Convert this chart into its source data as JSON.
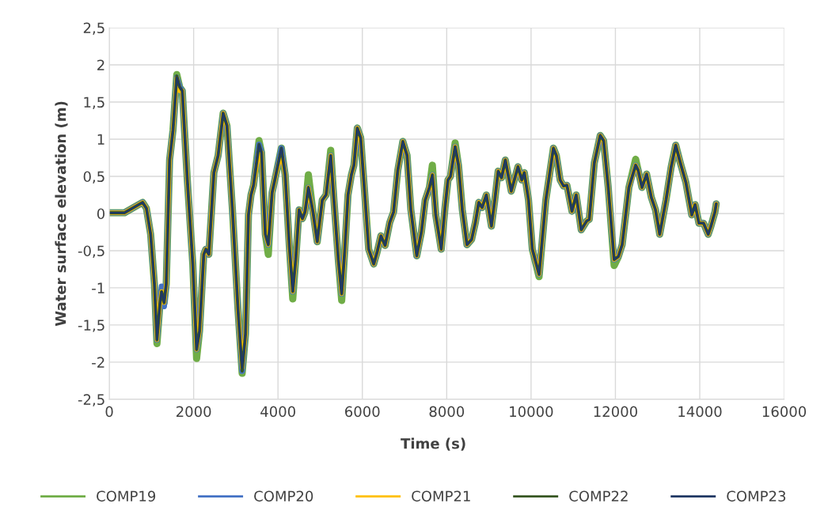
{
  "chart_data": {
    "type": "line",
    "xlabel": "Time (s)",
    "ylabel": "Water surface elevation (m)",
    "xlim": [
      0,
      16000
    ],
    "xticks": [
      0,
      2000,
      4000,
      6000,
      8000,
      10000,
      12000,
      14000,
      16000
    ],
    "ylim": [
      -2.5,
      2.5
    ],
    "yticks": [
      {
        "value": -2.5,
        "label": "-2,5"
      },
      -2,
      {
        "value": -1.5,
        "label": "-1,5"
      },
      -1,
      {
        "value": -0.5,
        "label": "-0,5"
      },
      0,
      {
        "value": 0.5,
        "label": "0,5"
      },
      1,
      {
        "value": 1.5,
        "label": "1,5"
      },
      2,
      {
        "value": 2.5,
        "label": "2,5"
      }
    ],
    "grid": true,
    "legend": "bottom",
    "marker": "none",
    "line_style": "solid",
    "x": [
      0,
      360,
      790,
      880,
      980,
      1070,
      1130,
      1200,
      1240,
      1300,
      1350,
      1430,
      1510,
      1600,
      1670,
      1730,
      1850,
      1980,
      2070,
      2140,
      2240,
      2290,
      2360,
      2480,
      2580,
      2700,
      2790,
      2920,
      3050,
      3150,
      3230,
      3300,
      3360,
      3420,
      3550,
      3610,
      3700,
      3770,
      3860,
      3950,
      4080,
      4170,
      4270,
      4350,
      4420,
      4500,
      4580,
      4640,
      4720,
      4830,
      4930,
      5050,
      5140,
      5250,
      5330,
      5430,
      5510,
      5580,
      5660,
      5740,
      5800,
      5880,
      5960,
      6050,
      6150,
      6210,
      6270,
      6350,
      6440,
      6540,
      6650,
      6740,
      6840,
      6960,
      7060,
      7150,
      7290,
      7400,
      7490,
      7590,
      7660,
      7740,
      7870,
      7960,
      8030,
      8090,
      8200,
      8280,
      8370,
      8480,
      8590,
      8680,
      8760,
      8840,
      8940,
      9060,
      9140,
      9220,
      9300,
      9390,
      9530,
      9690,
      9780,
      9840,
      9940,
      10030,
      10190,
      10350,
      10530,
      10600,
      10690,
      10770,
      10850,
      10970,
      11070,
      11190,
      11320,
      11380,
      11500,
      11640,
      11720,
      11830,
      11970,
      12070,
      12160,
      12320,
      12480,
      12540,
      12630,
      12740,
      12850,
      12950,
      13050,
      13200,
      13320,
      13430,
      13540,
      13670,
      13810,
      13890,
      13980,
      14090,
      14200,
      14260,
      14360,
      14390
    ],
    "series": [
      {
        "name": "COMP19",
        "color": "#70ad47",
        "values": [
          0.01,
          0.01,
          0.15,
          0.07,
          -0.28,
          -0.95,
          -1.75,
          -1.22,
          -1.05,
          -1.2,
          -0.95,
          0.72,
          1.12,
          1.87,
          1.7,
          1.65,
          0.45,
          -0.68,
          -1.95,
          -1.58,
          -0.55,
          -0.48,
          -0.55,
          0.55,
          0.78,
          1.35,
          1.18,
          0.05,
          -1.28,
          -2.15,
          -1.62,
          -0.02,
          0.25,
          0.38,
          0.98,
          0.82,
          -0.28,
          -0.55,
          0.28,
          0.52,
          0.88,
          0.52,
          -0.45,
          -1.15,
          -0.62,
          0.05,
          -0.07,
          0.02,
          0.52,
          0.02,
          -0.38,
          0.18,
          0.25,
          0.85,
          0.15,
          -0.62,
          -1.17,
          -0.52,
          0.25,
          0.52,
          0.65,
          1.15,
          1.02,
          0.32,
          -0.48,
          -0.58,
          -0.68,
          -0.52,
          -0.3,
          -0.43,
          -0.12,
          0.02,
          0.58,
          0.97,
          0.78,
          0.05,
          -0.57,
          -0.25,
          0.18,
          0.35,
          0.65,
          -0.02,
          -0.48,
          0.08,
          0.45,
          0.5,
          0.95,
          0.65,
          0.05,
          -0.42,
          -0.35,
          -0.12,
          0.15,
          0.08,
          0.25,
          -0.17,
          0.18,
          0.57,
          0.48,
          0.72,
          0.3,
          0.63,
          0.45,
          0.55,
          0.18,
          -0.48,
          -0.85,
          0.18,
          0.88,
          0.78,
          0.45,
          0.37,
          0.38,
          0.03,
          0.25,
          -0.22,
          -0.1,
          -0.08,
          0.68,
          1.05,
          0.98,
          0.35,
          -0.7,
          -0.58,
          -0.42,
          0.35,
          0.73,
          0.58,
          0.35,
          0.53,
          0.22,
          0.05,
          -0.28,
          0.18,
          0.62,
          0.92,
          0.68,
          0.42,
          -0.02,
          0.12,
          -0.13,
          -0.13,
          -0.28,
          -0.18,
          0.02,
          0.13
        ]
      },
      {
        "name": "COMP20",
        "color": "#4472c4",
        "values": [
          0.01,
          0.01,
          0.15,
          0.07,
          -0.28,
          -0.95,
          -1.7,
          -1.22,
          -0.98,
          -1.25,
          -0.95,
          0.72,
          1.12,
          1.83,
          1.7,
          1.65,
          0.45,
          -0.68,
          -1.83,
          -1.58,
          -0.55,
          -0.48,
          -0.55,
          0.55,
          0.78,
          1.35,
          1.18,
          0.05,
          -1.28,
          -2.12,
          -1.62,
          -0.02,
          0.25,
          0.38,
          0.93,
          0.82,
          -0.28,
          -0.42,
          0.28,
          0.52,
          0.88,
          0.52,
          -0.45,
          -1.05,
          -0.62,
          0.05,
          -0.07,
          0.02,
          0.35,
          0.02,
          -0.38,
          0.18,
          0.25,
          0.78,
          0.15,
          -0.62,
          -1.08,
          -0.52,
          0.25,
          0.52,
          0.65,
          1.15,
          1.02,
          0.32,
          -0.48,
          -0.58,
          -0.68,
          -0.52,
          -0.3,
          -0.43,
          -0.12,
          0.02,
          0.58,
          0.97,
          0.78,
          0.05,
          -0.57,
          -0.25,
          0.18,
          0.35,
          0.52,
          -0.02,
          -0.48,
          0.08,
          0.45,
          0.5,
          0.9,
          0.65,
          0.05,
          -0.42,
          -0.35,
          -0.12,
          0.15,
          0.08,
          0.25,
          -0.17,
          0.18,
          0.57,
          0.48,
          0.72,
          0.3,
          0.63,
          0.45,
          0.55,
          0.18,
          -0.48,
          -0.82,
          0.18,
          0.88,
          0.78,
          0.45,
          0.37,
          0.38,
          0.03,
          0.25,
          -0.22,
          -0.1,
          -0.08,
          0.68,
          1.05,
          0.98,
          0.35,
          -0.62,
          -0.58,
          -0.42,
          0.35,
          0.65,
          0.58,
          0.35,
          0.53,
          0.22,
          0.05,
          -0.28,
          0.18,
          0.62,
          0.92,
          0.68,
          0.42,
          -0.02,
          0.12,
          -0.13,
          -0.13,
          -0.28,
          -0.18,
          0.02,
          0.13
        ]
      },
      {
        "name": "COMP21",
        "color": "#ffc000",
        "values": [
          0.01,
          0.01,
          0.15,
          0.07,
          -0.28,
          -0.95,
          -1.7,
          -1.22,
          -1.05,
          -1.2,
          -0.95,
          0.72,
          1.12,
          1.83,
          1.65,
          1.65,
          0.45,
          -0.68,
          -1.83,
          -1.58,
          -0.55,
          -0.48,
          -0.55,
          0.55,
          0.78,
          1.35,
          1.18,
          0.05,
          -1.28,
          -2.08,
          -1.62,
          -0.02,
          0.25,
          0.38,
          0.85,
          0.82,
          -0.28,
          -0.42,
          0.28,
          0.52,
          0.82,
          0.52,
          -0.45,
          -1.05,
          -0.62,
          0.05,
          -0.07,
          0.02,
          0.35,
          0.02,
          -0.38,
          0.18,
          0.25,
          0.78,
          0.15,
          -0.62,
          -1.08,
          -0.52,
          0.25,
          0.52,
          0.65,
          1.15,
          1.02,
          0.32,
          -0.48,
          -0.58,
          -0.68,
          -0.52,
          -0.3,
          -0.43,
          -0.12,
          0.02,
          0.58,
          0.97,
          0.78,
          0.05,
          -0.57,
          -0.25,
          0.18,
          0.35,
          0.52,
          -0.02,
          -0.48,
          0.08,
          0.45,
          0.5,
          0.9,
          0.65,
          0.05,
          -0.42,
          -0.35,
          -0.12,
          0.15,
          0.08,
          0.25,
          -0.17,
          0.18,
          0.57,
          0.48,
          0.72,
          0.3,
          0.63,
          0.45,
          0.55,
          0.18,
          -0.48,
          -0.82,
          0.18,
          0.88,
          0.78,
          0.45,
          0.37,
          0.38,
          0.03,
          0.25,
          -0.22,
          -0.1,
          -0.08,
          0.68,
          1.05,
          0.98,
          0.35,
          -0.62,
          -0.58,
          -0.42,
          0.35,
          0.65,
          0.58,
          0.35,
          0.53,
          0.22,
          0.05,
          -0.28,
          0.18,
          0.62,
          0.92,
          0.68,
          0.42,
          -0.02,
          0.12,
          -0.13,
          -0.13,
          -0.28,
          -0.18,
          0.02,
          0.13
        ]
      },
      {
        "name": "COMP22",
        "color": "#375623",
        "values": [
          0.01,
          0.01,
          0.15,
          0.07,
          -0.28,
          -0.95,
          -1.7,
          -1.22,
          -1.05,
          -1.2,
          -0.95,
          0.72,
          1.12,
          1.85,
          1.7,
          1.65,
          0.45,
          -0.68,
          -1.83,
          -1.58,
          -0.55,
          -0.48,
          -0.55,
          0.55,
          0.78,
          1.35,
          1.18,
          0.05,
          -1.28,
          -2.12,
          -1.62,
          -0.02,
          0.25,
          0.38,
          0.93,
          0.82,
          -0.28,
          -0.42,
          0.28,
          0.52,
          0.88,
          0.52,
          -0.45,
          -1.05,
          -0.62,
          0.05,
          -0.07,
          0.02,
          0.35,
          0.02,
          -0.38,
          0.18,
          0.25,
          0.78,
          0.15,
          -0.62,
          -1.08,
          -0.52,
          0.25,
          0.52,
          0.65,
          1.15,
          1.02,
          0.32,
          -0.48,
          -0.58,
          -0.68,
          -0.52,
          -0.3,
          -0.43,
          -0.12,
          0.02,
          0.58,
          0.97,
          0.78,
          0.05,
          -0.57,
          -0.25,
          0.18,
          0.35,
          0.52,
          -0.02,
          -0.48,
          0.08,
          0.45,
          0.5,
          0.9,
          0.65,
          0.05,
          -0.42,
          -0.35,
          -0.12,
          0.15,
          0.08,
          0.25,
          -0.17,
          0.18,
          0.57,
          0.48,
          0.72,
          0.3,
          0.63,
          0.45,
          0.55,
          0.18,
          -0.48,
          -0.82,
          0.18,
          0.88,
          0.78,
          0.45,
          0.37,
          0.38,
          0.03,
          0.25,
          -0.22,
          -0.1,
          -0.08,
          0.68,
          1.05,
          0.98,
          0.35,
          -0.62,
          -0.58,
          -0.42,
          0.35,
          0.65,
          0.58,
          0.35,
          0.53,
          0.22,
          0.05,
          -0.28,
          0.18,
          0.62,
          0.92,
          0.68,
          0.42,
          -0.02,
          0.12,
          -0.13,
          -0.13,
          -0.28,
          -0.18,
          0.02,
          0.13
        ]
      },
      {
        "name": "COMP23",
        "color": "#203864",
        "values": [
          0.01,
          0.01,
          0.15,
          0.07,
          -0.28,
          -0.95,
          -1.7,
          -1.22,
          -1.05,
          -1.2,
          -0.95,
          0.72,
          1.12,
          1.83,
          1.7,
          1.65,
          0.45,
          -0.68,
          -1.83,
          -1.58,
          -0.55,
          -0.48,
          -0.55,
          0.55,
          0.78,
          1.35,
          1.18,
          0.05,
          -1.28,
          -2.08,
          -1.62,
          -0.02,
          0.25,
          0.38,
          0.93,
          0.82,
          -0.28,
          -0.42,
          0.28,
          0.52,
          0.88,
          0.52,
          -0.45,
          -1.05,
          -0.62,
          0.05,
          -0.07,
          0.02,
          0.35,
          0.02,
          -0.38,
          0.18,
          0.25,
          0.78,
          0.15,
          -0.62,
          -1.08,
          -0.52,
          0.25,
          0.52,
          0.65,
          1.15,
          1.02,
          0.32,
          -0.48,
          -0.58,
          -0.68,
          -0.52,
          -0.3,
          -0.43,
          -0.12,
          0.02,
          0.58,
          0.97,
          0.78,
          0.05,
          -0.57,
          -0.25,
          0.18,
          0.35,
          0.52,
          -0.02,
          -0.48,
          0.08,
          0.45,
          0.5,
          0.9,
          0.65,
          0.05,
          -0.42,
          -0.35,
          -0.12,
          0.15,
          0.08,
          0.25,
          -0.17,
          0.18,
          0.57,
          0.48,
          0.72,
          0.3,
          0.63,
          0.45,
          0.55,
          0.18,
          -0.48,
          -0.82,
          0.18,
          0.88,
          0.78,
          0.45,
          0.37,
          0.38,
          0.03,
          0.25,
          -0.22,
          -0.1,
          -0.08,
          0.68,
          1.05,
          0.98,
          0.35,
          -0.62,
          -0.58,
          -0.42,
          0.35,
          0.65,
          0.58,
          0.35,
          0.53,
          0.22,
          0.05,
          -0.28,
          0.18,
          0.62,
          0.92,
          0.68,
          0.42,
          -0.02,
          0.12,
          -0.13,
          -0.13,
          -0.28,
          -0.18,
          0.02,
          0.13
        ]
      }
    ]
  }
}
